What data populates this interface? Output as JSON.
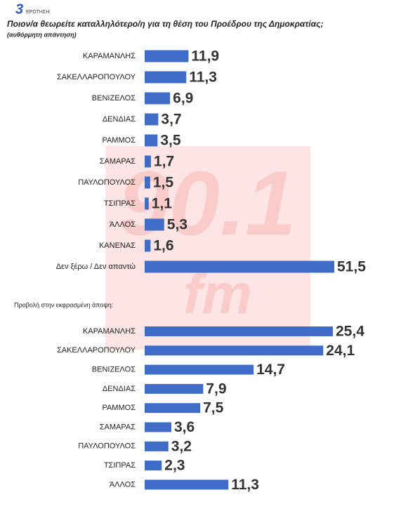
{
  "header": {
    "number": "3",
    "label": "ΕΡΩΤΗΣΗ:",
    "title": "Ποιον/α  θεωρείτε καταλληλότερο/η  για τη θέση του Προέδρου της Δημοκρατίας;",
    "subtitle": "(αυθόρμητη απάντηση)"
  },
  "watermark": {
    "station": "90.1",
    "band": "fm"
  },
  "chart_data": [
    {
      "type": "bar",
      "orientation": "horizontal",
      "color": "#3f6cc6",
      "categories": [
        "ΚΑΡΑΜΑΝΛΗΣ",
        "ΣΑΚΕΛΛΑΡΟΠΟΥΛΟΥ",
        "ΒΕΝΙΖΕΛΟΣ",
        "ΔΕΝΔΙΑΣ",
        "ΡΑΜΜΟΣ",
        "ΣΑΜΑΡΑΣ",
        "ΠΑΥΛΟΠΟΥΛΟΣ",
        "ΤΣΙΠΡΑΣ",
        "ΆΛΛΟΣ",
        "ΚΑΝΕΝΑΣ",
        "Δεν ξέρω / Δεν απαντώ"
      ],
      "values": [
        11.9,
        11.3,
        6.9,
        3.7,
        3.5,
        1.7,
        1.5,
        1.1,
        5.3,
        1.6,
        51.5
      ],
      "value_labels": [
        "11,9",
        "11,3",
        "6,9",
        "3,7",
        "3,5",
        "1,7",
        "1,5",
        "1,1",
        "5,3",
        "1,6",
        "51,5"
      ]
    },
    {
      "type": "bar",
      "orientation": "horizontal",
      "color": "#3f6cc6",
      "title": "Προβολή στην εκφρασμένη άποψη:",
      "categories": [
        "ΚΑΡΑΜΑΝΛΗΣ",
        "ΣΑΚΕΛΛΑΡΟΠΟΥΛΟΥ",
        "ΒΕΝΙΖΕΛΟΣ",
        "ΔΕΝΔΙΑΣ",
        "ΡΑΜΜΟΣ",
        "ΣΑΜΑΡΑΣ",
        "ΠΑΥΛΟΠΟΥΛΟΣ",
        "ΤΣΙΠΡΑΣ",
        "ΆΛΛΟΣ"
      ],
      "values": [
        25.4,
        24.1,
        14.7,
        7.9,
        7.5,
        3.6,
        3.2,
        2.3,
        11.3
      ],
      "value_labels": [
        "25,4",
        "24,1",
        "14,7",
        "7,9",
        "7,5",
        "3,6",
        "3,2",
        "2,3",
        "11,3"
      ]
    }
  ]
}
